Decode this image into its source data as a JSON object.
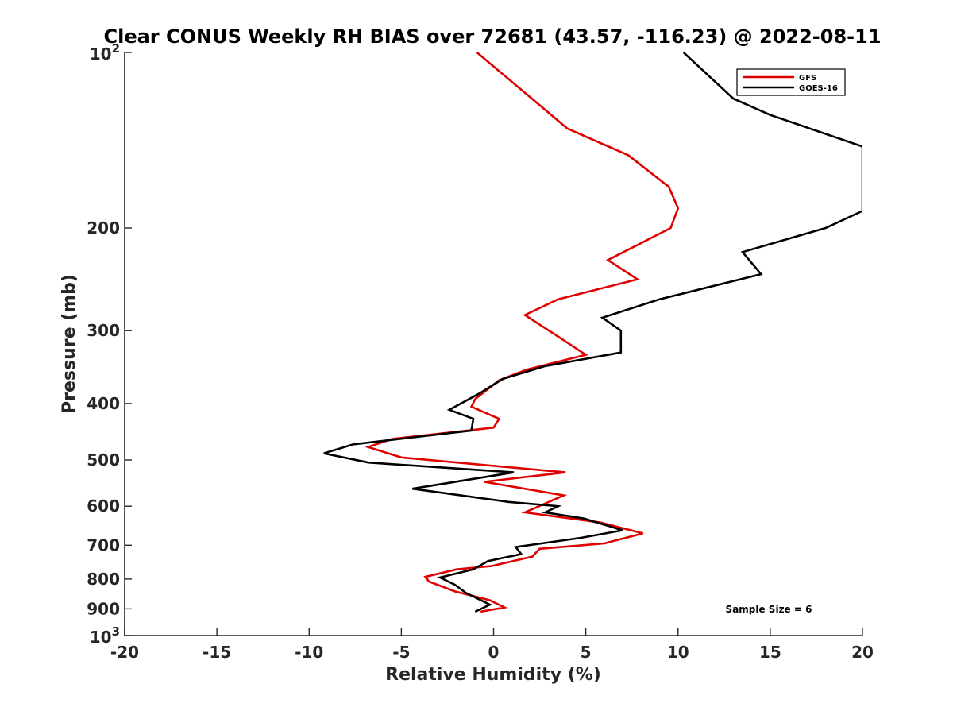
{
  "chart_data": {
    "type": "line",
    "title": "Clear CONUS Weekly RH BIAS over 72681 (43.57, -116.23) @ 2022-08-11",
    "xlabel": "Relative Humidity (%)",
    "ylabel": "Pressure (mb)",
    "xlim": [
      -20,
      20
    ],
    "ylim": [
      1000,
      100
    ],
    "y_scale": "log",
    "y_reversed": true,
    "x_ticks": [
      "-20",
      "-15",
      "-10",
      "-5",
      "0",
      "5",
      "10",
      "15",
      "20"
    ],
    "y_ticks": [
      {
        "value": 100,
        "base": "10",
        "exp": "2"
      },
      {
        "value": 200,
        "label": "200"
      },
      {
        "value": 300,
        "label": "300"
      },
      {
        "value": 400,
        "label": "400"
      },
      {
        "value": 500,
        "label": "500"
      },
      {
        "value": 600,
        "label": "600"
      },
      {
        "value": 700,
        "label": "700"
      },
      {
        "value": 800,
        "label": "800"
      },
      {
        "value": 900,
        "label": "900"
      },
      {
        "value": 1000,
        "base": "10",
        "exp": "3"
      }
    ],
    "grid": false,
    "legend_position": "top-right",
    "annotation": "Sample Size = 6",
    "series": [
      {
        "name": "GFS",
        "color": "#e00000",
        "points": [
          [
            -0.9,
            100
          ],
          [
            4.0,
            135
          ],
          [
            7.3,
            150
          ],
          [
            9.5,
            170
          ],
          [
            10.0,
            185
          ],
          [
            9.6,
            200
          ],
          [
            6.2,
            227
          ],
          [
            7.8,
            245
          ],
          [
            3.5,
            265
          ],
          [
            1.7,
            282
          ],
          [
            3.7,
            310
          ],
          [
            5.0,
            330
          ],
          [
            1.8,
            350
          ],
          [
            0.3,
            365
          ],
          [
            -1.0,
            393
          ],
          [
            -1.2,
            405
          ],
          [
            0.3,
            425
          ],
          [
            0.0,
            440
          ],
          [
            -5.5,
            460
          ],
          [
            -6.8,
            475
          ],
          [
            -5.0,
            495
          ],
          [
            3.9,
            525
          ],
          [
            -0.5,
            545
          ],
          [
            3.8,
            575
          ],
          [
            1.7,
            615
          ],
          [
            5.8,
            640
          ],
          [
            8.1,
            668
          ],
          [
            6.0,
            695
          ],
          [
            2.5,
            710
          ],
          [
            2.1,
            732
          ],
          [
            -0.1,
            760
          ],
          [
            -2.0,
            770
          ],
          [
            -3.7,
            793
          ],
          [
            -3.5,
            808
          ],
          [
            -2.1,
            840
          ],
          [
            -0.2,
            870
          ],
          [
            0.6,
            895
          ],
          [
            -0.7,
            910
          ]
        ]
      },
      {
        "name": "GOES-16",
        "color": "#000000",
        "points": [
          [
            10.3,
            100
          ],
          [
            13.0,
            120
          ],
          [
            15.0,
            128
          ],
          [
            20.0,
            145
          ],
          [
            20.0,
            187
          ],
          [
            18.0,
            200
          ],
          [
            13.5,
            220
          ],
          [
            14.5,
            240
          ],
          [
            9.0,
            265
          ],
          [
            5.9,
            285
          ],
          [
            6.9,
            300
          ],
          [
            6.9,
            327
          ],
          [
            2.8,
            345
          ],
          [
            0.5,
            363
          ],
          [
            -0.8,
            385
          ],
          [
            -2.4,
            410
          ],
          [
            -1.1,
            425
          ],
          [
            -1.2,
            445
          ],
          [
            -7.6,
            470
          ],
          [
            -9.2,
            487
          ],
          [
            -6.8,
            505
          ],
          [
            1.1,
            525
          ],
          [
            -4.4,
            560
          ],
          [
            0.8,
            590
          ],
          [
            3.5,
            600
          ],
          [
            2.8,
            615
          ],
          [
            4.9,
            630
          ],
          [
            7.0,
            660
          ],
          [
            4.7,
            680
          ],
          [
            1.2,
            705
          ],
          [
            1.5,
            725
          ],
          [
            -0.3,
            745
          ],
          [
            -1.1,
            770
          ],
          [
            -2.9,
            795
          ],
          [
            -2.1,
            818
          ],
          [
            -1.5,
            845
          ],
          [
            -0.2,
            885
          ],
          [
            -1.0,
            910
          ]
        ]
      }
    ]
  }
}
